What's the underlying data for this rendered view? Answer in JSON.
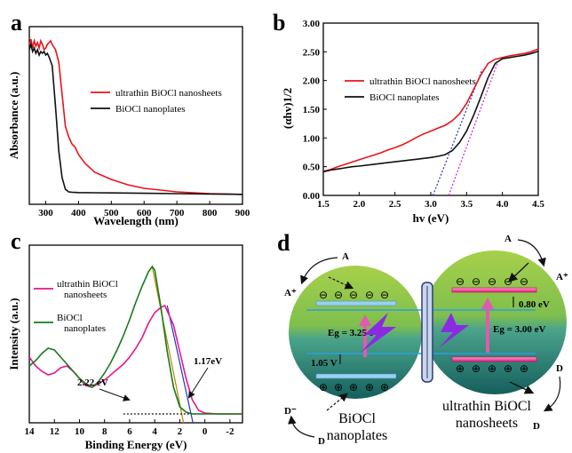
{
  "chart_data": [
    {
      "panel": "a",
      "type": "line",
      "xlabel": "Wavelength (nm)",
      "ylabel": "Absorbance (a.u.)",
      "xlim": [
        250,
        900
      ],
      "xticks": [
        300,
        400,
        500,
        600,
        700,
        800,
        900
      ],
      "ylim": [
        0,
        1
      ],
      "yticks_shown": false,
      "legend": "center-right",
      "series": [
        {
          "name": "ultrathin BiOCl nanosheets",
          "color": "#e8141a",
          "x": [
            250,
            255,
            260,
            265,
            270,
            275,
            280,
            285,
            290,
            295,
            300,
            305,
            310,
            315,
            320,
            330,
            340,
            350,
            360,
            370,
            380,
            390,
            400,
            420,
            450,
            500,
            550,
            600,
            650,
            700,
            750,
            800,
            850,
            900
          ],
          "y": [
            0.9,
            0.93,
            0.88,
            0.92,
            0.89,
            0.91,
            0.88,
            0.92,
            0.9,
            0.87,
            0.88,
            0.9,
            0.91,
            0.92,
            0.9,
            0.87,
            0.8,
            0.62,
            0.44,
            0.38,
            0.34,
            0.32,
            0.28,
            0.23,
            0.18,
            0.14,
            0.11,
            0.09,
            0.08,
            0.07,
            0.065,
            0.06,
            0.058,
            0.055
          ]
        },
        {
          "name": "BiOCl nanoplates",
          "color": "#111111",
          "x": [
            250,
            255,
            260,
            265,
            270,
            275,
            280,
            285,
            290,
            295,
            300,
            305,
            310,
            320,
            330,
            340,
            350,
            360,
            370,
            380,
            400,
            450,
            500,
            600,
            700,
            800,
            900
          ],
          "y": [
            0.87,
            0.9,
            0.86,
            0.88,
            0.85,
            0.87,
            0.84,
            0.86,
            0.85,
            0.86,
            0.84,
            0.85,
            0.83,
            0.78,
            0.55,
            0.3,
            0.15,
            0.085,
            0.07,
            0.068,
            0.066,
            0.065,
            0.064,
            0.062,
            0.06,
            0.058,
            0.056
          ]
        }
      ]
    },
    {
      "panel": "b",
      "type": "line",
      "xlabel": "hv (eV)",
      "ylabel": "(αhv)1/2",
      "xlim": [
        1.5,
        4.5
      ],
      "xticks": [
        1.5,
        2.0,
        2.5,
        3.0,
        3.5,
        4.0,
        4.5
      ],
      "ylim": [
        0,
        3
      ],
      "yticks": [
        0.0,
        0.5,
        1.0,
        1.5,
        2.0,
        2.5,
        3.0
      ],
      "legend": "center-right",
      "series": [
        {
          "name": "ultrathin BiOCl nanosheets",
          "color": "#e8141a",
          "x": [
            1.5,
            1.6,
            1.7,
            1.8,
            1.9,
            2.0,
            2.1,
            2.2,
            2.3,
            2.4,
            2.5,
            2.6,
            2.7,
            2.8,
            2.9,
            3.0,
            3.1,
            3.2,
            3.3,
            3.4,
            3.5,
            3.6,
            3.7,
            3.8,
            3.9,
            4.0,
            4.1,
            4.2,
            4.3,
            4.4,
            4.5
          ],
          "y": [
            0.42,
            0.45,
            0.5,
            0.54,
            0.58,
            0.62,
            0.66,
            0.7,
            0.74,
            0.79,
            0.83,
            0.88,
            0.94,
            1.01,
            1.07,
            1.12,
            1.17,
            1.22,
            1.3,
            1.42,
            1.6,
            1.85,
            2.1,
            2.3,
            2.37,
            2.4,
            2.43,
            2.45,
            2.47,
            2.5,
            2.55
          ]
        },
        {
          "name": "BiOCl nanoplates",
          "color": "#111111",
          "x": [
            1.5,
            1.6,
            1.7,
            1.8,
            1.9,
            2.0,
            2.2,
            2.4,
            2.6,
            2.8,
            3.0,
            3.1,
            3.2,
            3.3,
            3.4,
            3.5,
            3.6,
            3.7,
            3.8,
            3.9,
            4.0,
            4.1,
            4.2,
            4.3,
            4.4,
            4.5
          ],
          "y": [
            0.41,
            0.44,
            0.46,
            0.48,
            0.5,
            0.51,
            0.54,
            0.57,
            0.6,
            0.63,
            0.66,
            0.68,
            0.71,
            0.78,
            0.92,
            1.12,
            1.4,
            1.72,
            2.05,
            2.3,
            2.38,
            2.4,
            2.42,
            2.44,
            2.47,
            2.51
          ]
        }
      ],
      "fit_lines": [
        {
          "color": "#2233bb",
          "x": [
            3.03,
            3.72
          ],
          "y": [
            0.0,
            2.2
          ]
        },
        {
          "color": "#cc22cc",
          "x": [
            3.25,
            3.93
          ],
          "y": [
            0.0,
            2.3
          ]
        }
      ]
    },
    {
      "panel": "c",
      "type": "line",
      "xlabel": "Binding Energy (eV)",
      "ylabel": "Intensity (a.u.)",
      "xlim": [
        14,
        -3
      ],
      "xticks": [
        14,
        12,
        10,
        8,
        6,
        4,
        2,
        0,
        -2
      ],
      "ylim": [
        0,
        1
      ],
      "yticks_shown": false,
      "legend": "left",
      "series": [
        {
          "name": "ultrathin BiOCl nanosheets",
          "color": "#e8158c",
          "x": [
            14,
            13.5,
            13,
            12.5,
            12,
            11.5,
            11,
            10.5,
            10,
            9.5,
            9,
            8.5,
            8,
            7.5,
            7,
            6.5,
            6,
            5.5,
            5,
            4.5,
            4,
            3.5,
            3.2,
            3,
            2.5,
            2,
            1.5,
            1,
            0.5,
            0,
            -1,
            -2,
            -3
          ],
          "y": [
            0.37,
            0.32,
            0.29,
            0.27,
            0.28,
            0.31,
            0.32,
            0.29,
            0.25,
            0.21,
            0.2,
            0.22,
            0.24,
            0.27,
            0.3,
            0.33,
            0.37,
            0.42,
            0.48,
            0.56,
            0.62,
            0.65,
            0.66,
            0.63,
            0.55,
            0.4,
            0.25,
            0.13,
            0.07,
            0.055,
            0.05,
            0.05,
            0.05
          ]
        },
        {
          "name": "BiOCl nanoplates",
          "color": "#1a7a1a",
          "x": [
            14,
            13.5,
            13,
            12.5,
            12,
            11.5,
            11,
            10.5,
            10,
            9.5,
            9,
            8.5,
            8,
            7.5,
            7,
            6.5,
            6,
            5.5,
            5,
            4.5,
            4.2,
            4,
            3.5,
            3,
            2.5,
            2,
            1.5,
            1,
            0.5,
            0,
            -1,
            -2,
            -3
          ],
          "y": [
            0.32,
            0.35,
            0.39,
            0.42,
            0.41,
            0.37,
            0.33,
            0.29,
            0.25,
            0.22,
            0.2,
            0.23,
            0.28,
            0.34,
            0.41,
            0.49,
            0.58,
            0.68,
            0.77,
            0.85,
            0.88,
            0.86,
            0.65,
            0.4,
            0.2,
            0.09,
            0.06,
            0.05,
            0.05,
            0.05,
            0.05,
            0.05,
            0.05
          ]
        }
      ],
      "fit_lines": [
        {
          "color": "#b58a00",
          "x": [
            4.2,
            1.7
          ],
          "y": [
            0.88,
            0.0
          ]
        },
        {
          "color": "#2233cc",
          "x": [
            3.0,
            0.95
          ],
          "y": [
            0.66,
            0.0
          ]
        },
        {
          "color": "#111111",
          "x": [
            6.5,
            -2.5
          ],
          "y": [
            0.05,
            0.05
          ],
          "dash": true
        }
      ],
      "annotations": [
        "2.22 eV",
        "1.17eV"
      ]
    }
  ],
  "panel_labels": {
    "a": "a",
    "b": "b",
    "c": "c",
    "d": "d"
  },
  "diagram": {
    "left_label_line1": "BiOCl",
    "left_label_line2": "nanoplates",
    "right_label_line1": "ultrathin BiOCl",
    "right_label_line2": "nanosheets",
    "left_eg": "Eg = 3.25 eV",
    "right_eg": "Eg = 3.00 eV",
    "left_shift": "1.05 V",
    "right_shift": "0.80 eV",
    "A_left": "A",
    "Aplus_left": "A⁺",
    "D_left": "D",
    "Dminus_left": "D⁻",
    "A_right": "A",
    "Aplus_right": "A⁺",
    "D_right_top": "D",
    "D_right_bottom": "D",
    "minus_sign": "⊖",
    "plus_sign": "⊕",
    "colors": {
      "green_top": "#8dc63f",
      "teal_bottom": "#1d7a70",
      "electron_bar": "#9ad0f0",
      "hole_bar": "#e8158c",
      "lightning": "#8a2be2"
    }
  }
}
